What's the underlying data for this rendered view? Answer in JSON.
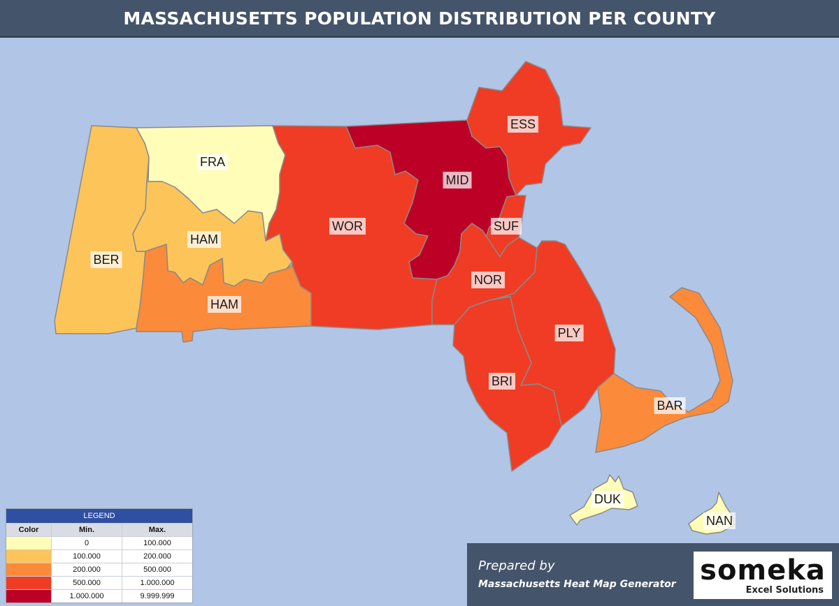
{
  "title": "MASSACHUSETTS POPULATION DISTRIBUTION PER COUNTY",
  "counties": [
    {
      "id": "BER",
      "label": "BER",
      "color": "#fdc45a"
    },
    {
      "id": "FRA",
      "label": "FRA",
      "color": "#fffdb8"
    },
    {
      "id": "HAM1",
      "label": "HAM",
      "color": "#fdc45a"
    },
    {
      "id": "HAM2",
      "label": "HAM",
      "color": "#fb8a3a"
    },
    {
      "id": "WOR",
      "label": "WOR",
      "color": "#f03c24"
    },
    {
      "id": "MID",
      "label": "MID",
      "color": "#bd0026"
    },
    {
      "id": "ESS",
      "label": "ESS",
      "color": "#f03c24"
    },
    {
      "id": "SUF",
      "label": "SUF",
      "color": "#f03c24"
    },
    {
      "id": "NOR",
      "label": "NOR",
      "color": "#f03c24"
    },
    {
      "id": "PLY",
      "label": "PLY",
      "color": "#f03c24"
    },
    {
      "id": "BRI",
      "label": "BRI",
      "color": "#f03c24"
    },
    {
      "id": "BAR",
      "label": "BAR",
      "color": "#fb8a3a"
    },
    {
      "id": "DUK",
      "label": "DUK",
      "color": "#fffdb8"
    },
    {
      "id": "NAN",
      "label": "NAN",
      "color": "#fffdb8"
    }
  ],
  "legend": {
    "title": "LEGEND",
    "headers": {
      "color": "Color",
      "min": "Min.",
      "max": "Max."
    },
    "rows": [
      {
        "color": "#fffdb8",
        "min": "0",
        "max": "100.000"
      },
      {
        "color": "#fdc45a",
        "min": "100.000",
        "max": "200.000"
      },
      {
        "color": "#fb8a3a",
        "min": "200.000",
        "max": "500.000"
      },
      {
        "color": "#f03c24",
        "min": "500.000",
        "max": "1.000.000"
      },
      {
        "color": "#bd0026",
        "min": "1.000.000",
        "max": "9.999.999"
      }
    ]
  },
  "credit": {
    "prepared_by": "Prepared by",
    "generator": "Massachusetts Heat Map Generator",
    "logo": "someka",
    "logo_sub": "Excel Solutions"
  }
}
